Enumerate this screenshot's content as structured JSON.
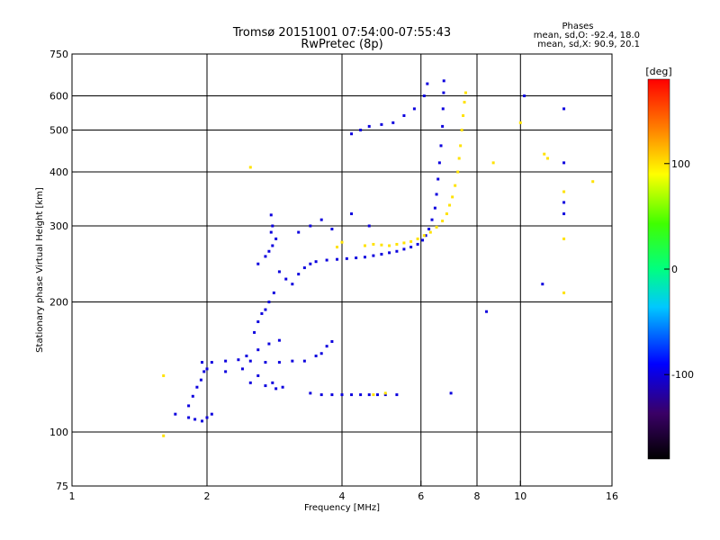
{
  "chart_data": {
    "type": "scatter",
    "title": "Tromsø 20151001 07:54:00-07:55:43",
    "subtitle": "RwPretec (8p)",
    "stats": {
      "header": "Phases",
      "line1": "mean, sd,O: -92.4, 18.0",
      "line2": "mean, sd,X:  90.9, 20.1"
    },
    "xlabel": "Frequency [MHz]",
    "ylabel": "Stationary phase Virtual Height [km]",
    "x_scale": "log",
    "y_scale": "log",
    "xlim": [
      1,
      16
    ],
    "ylim": [
      75,
      750
    ],
    "x_ticks": [
      1,
      2,
      4,
      6,
      8,
      10,
      16
    ],
    "x_tick_labels": [
      "1",
      "2",
      "4",
      "6",
      "8",
      "10",
      "16"
    ],
    "y_ticks": [
      75,
      100,
      200,
      300,
      400,
      500,
      600,
      750
    ],
    "y_tick_labels": [
      "75",
      "100",
      "200",
      "300",
      "400",
      "500",
      "600",
      "750"
    ],
    "grid": true,
    "colorbar": {
      "label": "[deg]",
      "range": [
        -180,
        180
      ],
      "ticks": [
        100,
        0,
        -100
      ],
      "tick_labels": [
        "100",
        "0",
        "-100"
      ]
    },
    "series": [
      {
        "mode": "O",
        "color_phase_deg": -100,
        "points": [
          [
            1.7,
            110
          ],
          [
            1.82,
            108
          ],
          [
            1.88,
            107
          ],
          [
            1.95,
            106
          ],
          [
            2.0,
            108
          ],
          [
            2.05,
            110
          ],
          [
            1.82,
            115
          ],
          [
            1.86,
            121
          ],
          [
            1.9,
            127
          ],
          [
            1.94,
            132
          ],
          [
            1.97,
            138
          ],
          [
            1.95,
            145
          ],
          [
            2.05,
            145
          ],
          [
            2.2,
            146
          ],
          [
            2.35,
            147
          ],
          [
            2.5,
            146
          ],
          [
            2.7,
            145
          ],
          [
            2.9,
            145
          ],
          [
            3.1,
            146
          ],
          [
            3.3,
            146
          ],
          [
            2.0,
            140
          ],
          [
            2.2,
            138
          ],
          [
            2.4,
            140
          ],
          [
            2.6,
            135
          ],
          [
            2.8,
            130
          ],
          [
            2.95,
            127
          ],
          [
            2.5,
            130
          ],
          [
            2.7,
            128
          ],
          [
            2.85,
            126
          ],
          [
            2.45,
            150
          ],
          [
            2.6,
            155
          ],
          [
            2.75,
            160
          ],
          [
            2.9,
            163
          ],
          [
            2.55,
            170
          ],
          [
            2.6,
            180
          ],
          [
            2.65,
            188
          ],
          [
            2.7,
            192
          ],
          [
            2.75,
            200
          ],
          [
            2.82,
            210
          ],
          [
            2.6,
            245
          ],
          [
            2.7,
            255
          ],
          [
            2.75,
            262
          ],
          [
            2.8,
            270
          ],
          [
            2.85,
            280
          ],
          [
            2.78,
            290
          ],
          [
            2.8,
            300
          ],
          [
            2.78,
            318
          ],
          [
            2.9,
            235
          ],
          [
            3.0,
            226
          ],
          [
            3.1,
            220
          ],
          [
            3.2,
            232
          ],
          [
            3.3,
            240
          ],
          [
            3.4,
            245
          ],
          [
            3.5,
            248
          ],
          [
            3.7,
            250
          ],
          [
            3.9,
            251
          ],
          [
            4.1,
            252
          ],
          [
            4.3,
            253
          ],
          [
            4.5,
            254
          ],
          [
            4.7,
            256
          ],
          [
            4.9,
            258
          ],
          [
            5.1,
            260
          ],
          [
            5.3,
            262
          ],
          [
            5.5,
            265
          ],
          [
            5.7,
            268
          ],
          [
            5.9,
            272
          ],
          [
            6.05,
            278
          ],
          [
            6.15,
            285
          ],
          [
            6.25,
            295
          ],
          [
            6.35,
            310
          ],
          [
            6.45,
            330
          ],
          [
            6.5,
            355
          ],
          [
            6.55,
            385
          ],
          [
            6.6,
            420
          ],
          [
            6.65,
            460
          ],
          [
            6.7,
            510
          ],
          [
            6.72,
            560
          ],
          [
            6.74,
            610
          ],
          [
            6.75,
            650
          ],
          [
            3.4,
            123
          ],
          [
            3.6,
            122
          ],
          [
            3.8,
            122
          ],
          [
            4.0,
            122
          ],
          [
            4.2,
            122
          ],
          [
            4.4,
            122
          ],
          [
            4.6,
            122
          ],
          [
            4.8,
            122
          ],
          [
            5.0,
            122
          ],
          [
            5.3,
            122
          ],
          [
            3.5,
            150
          ],
          [
            3.6,
            152
          ],
          [
            3.7,
            158
          ],
          [
            3.8,
            162
          ],
          [
            3.2,
            290
          ],
          [
            3.4,
            300
          ],
          [
            3.6,
            310
          ],
          [
            3.8,
            295
          ],
          [
            4.2,
            320
          ],
          [
            4.6,
            300
          ],
          [
            4.2,
            490
          ],
          [
            4.4,
            500
          ],
          [
            4.6,
            510
          ],
          [
            4.9,
            515
          ],
          [
            5.2,
            520
          ],
          [
            5.5,
            540
          ],
          [
            5.8,
            560
          ],
          [
            6.1,
            600
          ],
          [
            6.2,
            640
          ],
          [
            8.4,
            190
          ],
          [
            11.2,
            220
          ],
          [
            12.5,
            340
          ],
          [
            12.5,
            320
          ],
          [
            12.5,
            420
          ],
          [
            12.5,
            560
          ],
          [
            10.2,
            600
          ],
          [
            7.0,
            123
          ]
        ]
      },
      {
        "mode": "X",
        "color_phase_deg": 100,
        "points": [
          [
            4.5,
            270
          ],
          [
            4.7,
            272
          ],
          [
            4.9,
            271
          ],
          [
            5.1,
            270
          ],
          [
            5.3,
            272
          ],
          [
            5.5,
            274
          ],
          [
            5.7,
            276
          ],
          [
            5.9,
            280
          ],
          [
            6.1,
            285
          ],
          [
            6.3,
            290
          ],
          [
            6.5,
            298
          ],
          [
            6.7,
            308
          ],
          [
            6.85,
            320
          ],
          [
            6.95,
            335
          ],
          [
            7.05,
            350
          ],
          [
            7.15,
            372
          ],
          [
            7.25,
            400
          ],
          [
            7.3,
            430
          ],
          [
            7.35,
            460
          ],
          [
            7.4,
            500
          ],
          [
            7.45,
            540
          ],
          [
            7.5,
            580
          ],
          [
            7.55,
            610
          ],
          [
            2.5,
            410
          ],
          [
            4.0,
            275
          ],
          [
            3.9,
            268
          ],
          [
            1.6,
            135
          ],
          [
            1.6,
            98
          ],
          [
            8.7,
            420
          ],
          [
            11.3,
            440
          ],
          [
            11.5,
            430
          ],
          [
            12.5,
            280
          ],
          [
            12.5,
            360
          ],
          [
            14.5,
            380
          ],
          [
            10.0,
            520
          ],
          [
            12.5,
            210
          ],
          [
            4.7,
            122
          ],
          [
            5.0,
            123
          ]
        ]
      }
    ]
  }
}
